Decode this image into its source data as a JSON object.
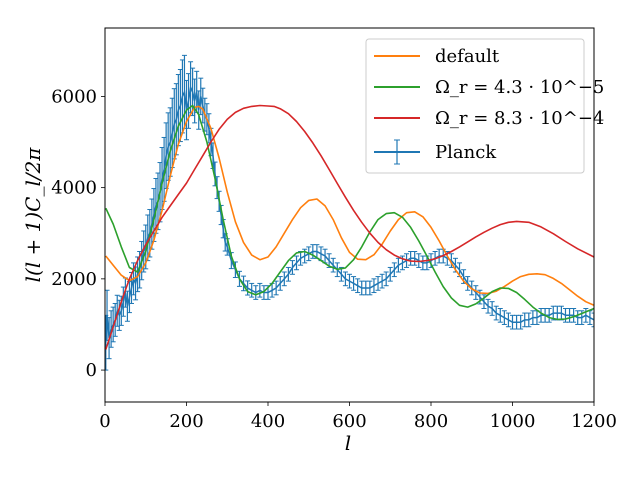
{
  "chart_data": {
    "type": "line",
    "title": "",
    "xlabel": "l",
    "ylabel": "l(l + 1)C_l/2π",
    "xlim": [
      0,
      1200
    ],
    "ylim": [
      -700,
      7500
    ],
    "xticks": [
      "0",
      "200",
      "400",
      "600",
      "800",
      "1000",
      "1200"
    ],
    "yticks": [
      "0",
      "2000",
      "4000",
      "6000"
    ],
    "grid": false,
    "legend_position": "top-right",
    "series": [
      {
        "name": "default",
        "color": "#ff7f0e",
        "x": [
          2,
          20,
          40,
          60,
          80,
          100,
          120,
          140,
          160,
          180,
          200,
          220,
          230,
          240,
          260,
          280,
          300,
          320,
          340,
          360,
          380,
          400,
          420,
          440,
          460,
          480,
          500,
          520,
          540,
          560,
          580,
          600,
          620,
          640,
          660,
          680,
          700,
          720,
          740,
          760,
          780,
          800,
          820,
          840,
          860,
          880,
          900,
          920,
          940,
          960,
          980,
          1000,
          1020,
          1040,
          1060,
          1080,
          1100,
          1120,
          1140,
          1160,
          1180,
          1200
        ],
        "y": [
          2500,
          2300,
          2080,
          1960,
          2050,
          2350,
          2850,
          3500,
          4250,
          4950,
          5450,
          5760,
          5780,
          5720,
          5300,
          4650,
          3900,
          3250,
          2800,
          2520,
          2420,
          2480,
          2700,
          3000,
          3300,
          3560,
          3720,
          3750,
          3600,
          3300,
          2900,
          2580,
          2430,
          2420,
          2530,
          2760,
          3050,
          3300,
          3450,
          3470,
          3360,
          3130,
          2830,
          2500,
          2200,
          1950,
          1780,
          1690,
          1680,
          1730,
          1830,
          1950,
          2050,
          2100,
          2110,
          2090,
          2010,
          1900,
          1760,
          1620,
          1500,
          1420
        ]
      },
      {
        "name": "Ω_r = 4.3 · 10^−5",
        "color": "#2ca02c",
        "x": [
          2,
          20,
          40,
          60,
          80,
          100,
          120,
          140,
          160,
          180,
          200,
          215,
          230,
          250,
          270,
          290,
          310,
          330,
          350,
          370,
          390,
          410,
          430,
          450,
          470,
          490,
          510,
          530,
          550,
          570,
          590,
          610,
          630,
          650,
          670,
          690,
          710,
          730,
          750,
          770,
          790,
          810,
          830,
          850,
          870,
          890,
          910,
          930,
          950,
          970,
          990,
          1010,
          1030,
          1050,
          1070,
          1090,
          1110,
          1130,
          1150,
          1170,
          1200
        ],
        "y": [
          3550,
          3200,
          2700,
          2250,
          2150,
          2600,
          3300,
          4100,
          4800,
          5350,
          5700,
          5800,
          5600,
          5000,
          4200,
          3300,
          2500,
          2000,
          1720,
          1650,
          1720,
          1900,
          2150,
          2400,
          2570,
          2600,
          2520,
          2400,
          2280,
          2210,
          2240,
          2420,
          2700,
          3030,
          3300,
          3430,
          3450,
          3350,
          3130,
          2830,
          2500,
          2150,
          1830,
          1580,
          1420,
          1380,
          1450,
          1580,
          1720,
          1800,
          1790,
          1700,
          1550,
          1380,
          1250,
          1150,
          1110,
          1120,
          1170,
          1240,
          1350
        ]
      },
      {
        "name": "Ω_r = 8.3 · 10^−4",
        "color": "#d62728",
        "x": [
          2,
          20,
          40,
          60,
          80,
          100,
          120,
          140,
          160,
          180,
          200,
          220,
          240,
          260,
          280,
          300,
          320,
          340,
          360,
          380,
          400,
          415,
          430,
          450,
          470,
          490,
          510,
          530,
          550,
          570,
          590,
          610,
          630,
          650,
          670,
          690,
          710,
          730,
          750,
          770,
          790,
          810,
          830,
          850,
          870,
          890,
          910,
          930,
          950,
          970,
          990,
          1010,
          1040,
          1070,
          1100,
          1130,
          1160,
          1200
        ],
        "y": [
          450,
          950,
          1500,
          2000,
          2400,
          2750,
          3050,
          3350,
          3600,
          3850,
          4100,
          4400,
          4700,
          5000,
          5280,
          5500,
          5650,
          5740,
          5780,
          5800,
          5790,
          5780,
          5730,
          5620,
          5450,
          5230,
          4980,
          4700,
          4400,
          4090,
          3790,
          3500,
          3240,
          3000,
          2800,
          2640,
          2520,
          2440,
          2390,
          2380,
          2400,
          2440,
          2510,
          2600,
          2700,
          2810,
          2920,
          3020,
          3110,
          3190,
          3240,
          3260,
          3240,
          3140,
          2990,
          2820,
          2660,
          2480
        ]
      }
    ],
    "errorbar_series": {
      "name": "Planck",
      "color": "#1f77b4",
      "x": [
        2,
        5,
        10,
        15,
        20,
        25,
        30,
        35,
        40,
        45,
        50,
        55,
        60,
        65,
        70,
        75,
        80,
        85,
        90,
        95,
        100,
        105,
        110,
        115,
        120,
        125,
        130,
        135,
        140,
        145,
        150,
        155,
        160,
        165,
        170,
        175,
        180,
        185,
        190,
        195,
        200,
        205,
        210,
        215,
        220,
        225,
        230,
        235,
        240,
        245,
        250,
        255,
        260,
        265,
        270,
        275,
        280,
        285,
        290,
        295,
        300,
        310,
        320,
        330,
        340,
        350,
        360,
        370,
        380,
        390,
        400,
        410,
        420,
        430,
        440,
        450,
        460,
        470,
        480,
        490,
        500,
        510,
        520,
        530,
        540,
        550,
        560,
        570,
        580,
        590,
        600,
        610,
        620,
        630,
        640,
        650,
        660,
        670,
        680,
        690,
        700,
        710,
        720,
        730,
        740,
        750,
        760,
        770,
        780,
        790,
        800,
        810,
        820,
        830,
        840,
        850,
        860,
        870,
        880,
        890,
        900,
        910,
        920,
        930,
        940,
        950,
        960,
        970,
        980,
        990,
        1000,
        1010,
        1020,
        1030,
        1040,
        1050,
        1060,
        1070,
        1080,
        1090,
        1100,
        1110,
        1120,
        1130,
        1140,
        1150,
        1160,
        1170,
        1180,
        1190,
        1200
      ],
      "y": [
        600,
        1200,
        700,
        900,
        1000,
        1100,
        1300,
        1200,
        1300,
        1500,
        1700,
        1400,
        1600,
        1800,
        2000,
        1900,
        2100,
        2200,
        2400,
        2600,
        2700,
        2900,
        3000,
        3200,
        3400,
        3600,
        3700,
        3900,
        4200,
        4400,
        4700,
        4900,
        5000,
        5200,
        5400,
        5500,
        5700,
        5800,
        6000,
        6100,
        5700,
        5900,
        6200,
        6100,
        5900,
        6100,
        5700,
        6000,
        5800,
        5600,
        5500,
        5300,
        5000,
        4700,
        4300,
        4000,
        3700,
        3400,
        3100,
        2800,
        2700,
        2400,
        2200,
        2000,
        1900,
        1800,
        1750,
        1700,
        1750,
        1700,
        1700,
        1750,
        1800,
        1900,
        2000,
        2100,
        2250,
        2350,
        2450,
        2500,
        2550,
        2600,
        2600,
        2550,
        2500,
        2400,
        2300,
        2200,
        2100,
        2000,
        1950,
        1900,
        1850,
        1800,
        1800,
        1800,
        1850,
        1900,
        1950,
        2000,
        2100,
        2200,
        2300,
        2350,
        2400,
        2450,
        2450,
        2400,
        2350,
        2350,
        2400,
        2450,
        2500,
        2500,
        2450,
        2400,
        2300,
        2200,
        2050,
        1900,
        1800,
        1700,
        1600,
        1500,
        1400,
        1350,
        1250,
        1200,
        1150,
        1100,
        1050,
        1050,
        1050,
        1100,
        1100,
        1150,
        1150,
        1200,
        1200,
        1200,
        1250,
        1250,
        1250,
        1200,
        1200,
        1200,
        1150,
        1150,
        1200,
        1150,
        1100
      ],
      "err": [
        600,
        550,
        450,
        400,
        380,
        360,
        340,
        330,
        320,
        320,
        320,
        330,
        340,
        340,
        350,
        360,
        380,
        400,
        420,
        450,
        480,
        500,
        520,
        550,
        580,
        600,
        620,
        650,
        680,
        700,
        720,
        740,
        750,
        760,
        770,
        780,
        780,
        790,
        800,
        800,
        650,
        600,
        560,
        520,
        480,
        450,
        420,
        400,
        380,
        360,
        340,
        320,
        300,
        280,
        260,
        240,
        220,
        210,
        200,
        190,
        180,
        175,
        170,
        165,
        160,
        155,
        150,
        150,
        150,
        150,
        150,
        150,
        150,
        150,
        150,
        150,
        150,
        150,
        150,
        150,
        150,
        150,
        150,
        150,
        150,
        150,
        150,
        150,
        150,
        150,
        150,
        150,
        150,
        150,
        150,
        150,
        150,
        150,
        150,
        150,
        150,
        150,
        150,
        150,
        150,
        150,
        150,
        150,
        150,
        150,
        150,
        150,
        150,
        150,
        150,
        150,
        150,
        150,
        150,
        150,
        150,
        150,
        150,
        150,
        150,
        150,
        150,
        150,
        150,
        150,
        150,
        150,
        150,
        150,
        150,
        150,
        150,
        150,
        150,
        150,
        150,
        150,
        150,
        150,
        150,
        150,
        150,
        150,
        150,
        150,
        150
      ]
    }
  }
}
